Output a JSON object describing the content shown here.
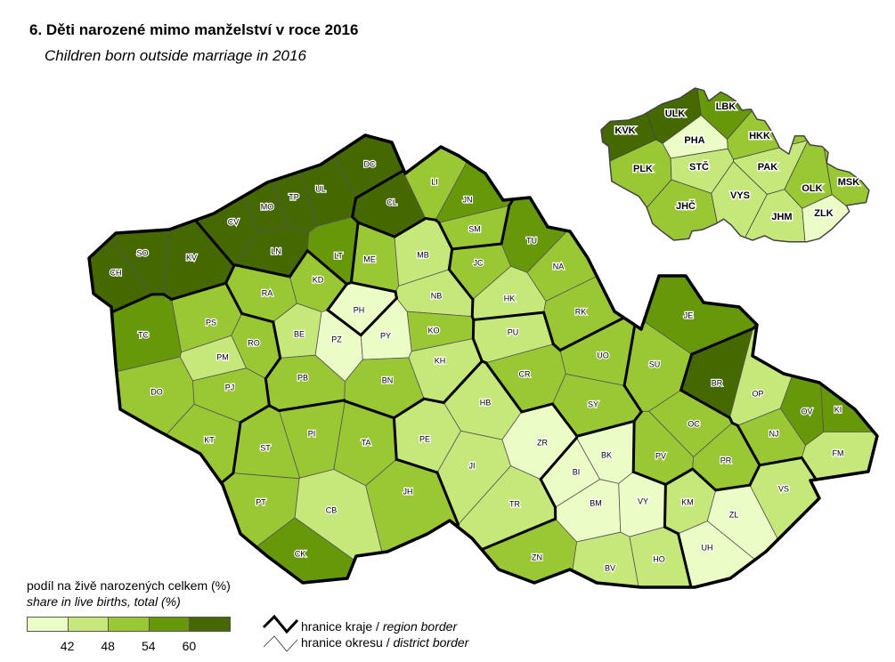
{
  "title": "6. Děti narozené mimo manželství v roce 2016",
  "subtitle": "Children born outside marriage in 2016",
  "legend": {
    "title_cz": "podíl na živě narozených celkem (%)",
    "title_en": "share in live births, total (%)",
    "breaks": [
      "42",
      "48",
      "54",
      "60"
    ],
    "colors": [
      "#ebfcc6",
      "#c6e87a",
      "#9ac834",
      "#66980a",
      "#456800"
    ],
    "region_border": {
      "cz": "hranice kraje / ",
      "en": "region border"
    },
    "district_border": {
      "cz": "hranice okresu / ",
      "en": "district border"
    }
  },
  "map": {
    "districts": [
      {
        "code": "CH",
        "region": "KVK",
        "class": 5
      },
      {
        "code": "SO",
        "region": "KVK",
        "class": 5
      },
      {
        "code": "KV",
        "region": "KVK",
        "class": 5
      },
      {
        "code": "DC",
        "region": "ULK",
        "class": 5
      },
      {
        "code": "UL",
        "region": "ULK",
        "class": 5
      },
      {
        "code": "TP",
        "region": "ULK",
        "class": 5
      },
      {
        "code": "MO",
        "region": "ULK",
        "class": 5
      },
      {
        "code": "CV",
        "region": "ULK",
        "class": 5
      },
      {
        "code": "LN",
        "region": "ULK",
        "class": 5
      },
      {
        "code": "LT",
        "region": "ULK",
        "class": 4
      },
      {
        "code": "CL",
        "region": "LBK",
        "class": 5
      },
      {
        "code": "LI",
        "region": "LBK",
        "class": 3
      },
      {
        "code": "JN",
        "region": "LBK",
        "class": 4
      },
      {
        "code": "SM",
        "region": "LBK",
        "class": 3
      },
      {
        "code": "JC",
        "region": "HKK",
        "class": 3
      },
      {
        "code": "TU",
        "region": "HKK",
        "class": 4
      },
      {
        "code": "NA",
        "region": "HKK",
        "class": 3
      },
      {
        "code": "HK",
        "region": "HKK",
        "class": 2
      },
      {
        "code": "RK",
        "region": "HKK",
        "class": 3
      },
      {
        "code": "PH",
        "region": "PHA",
        "class": 1
      },
      {
        "code": "ME",
        "region": "STC",
        "class": 3
      },
      {
        "code": "MB",
        "region": "STC",
        "class": 2
      },
      {
        "code": "RA",
        "region": "STC",
        "class": 3
      },
      {
        "code": "KD",
        "region": "STC",
        "class": 3
      },
      {
        "code": "BE",
        "region": "STC",
        "class": 2
      },
      {
        "code": "PZ",
        "region": "STC",
        "class": 1
      },
      {
        "code": "PY",
        "region": "STC",
        "class": 1
      },
      {
        "code": "NB",
        "region": "STC",
        "class": 2
      },
      {
        "code": "KO",
        "region": "STC",
        "class": 3
      },
      {
        "code": "KH",
        "region": "STC",
        "class": 2
      },
      {
        "code": "PB",
        "region": "STC",
        "class": 3
      },
      {
        "code": "BN",
        "region": "STC",
        "class": 3
      },
      {
        "code": "TC",
        "region": "PLK",
        "class": 4
      },
      {
        "code": "PS",
        "region": "PLK",
        "class": 3
      },
      {
        "code": "RO",
        "region": "PLK",
        "class": 3
      },
      {
        "code": "PM",
        "region": "PLK",
        "class": 2
      },
      {
        "code": "PJ",
        "region": "PLK",
        "class": 3
      },
      {
        "code": "DO",
        "region": "PLK",
        "class": 3
      },
      {
        "code": "KT",
        "region": "PLK",
        "class": 3
      },
      {
        "code": "ST",
        "region": "JHC",
        "class": 3
      },
      {
        "code": "PI",
        "region": "JHC",
        "class": 3
      },
      {
        "code": "TA",
        "region": "JHC",
        "class": 3
      },
      {
        "code": "PT",
        "region": "JHC",
        "class": 3
      },
      {
        "code": "CB",
        "region": "JHC",
        "class": 2
      },
      {
        "code": "CK",
        "region": "JHC",
        "class": 4
      },
      {
        "code": "JH",
        "region": "JHC",
        "class": 3
      },
      {
        "code": "PU",
        "region": "PAK",
        "class": 2
      },
      {
        "code": "CR",
        "region": "PAK",
        "class": 3
      },
      {
        "code": "UO",
        "region": "PAK",
        "class": 3
      },
      {
        "code": "SY",
        "region": "PAK",
        "class": 3
      },
      {
        "code": "HB",
        "region": "VYS",
        "class": 2
      },
      {
        "code": "PE",
        "region": "VYS",
        "class": 2
      },
      {
        "code": "JI",
        "region": "VYS",
        "class": 2
      },
      {
        "code": "TR",
        "region": "VYS",
        "class": 2
      },
      {
        "code": "ZR",
        "region": "VYS",
        "class": 1
      },
      {
        "code": "BI",
        "region": "JHM",
        "class": 1
      },
      {
        "code": "BK",
        "region": "JHM",
        "class": 1
      },
      {
        "code": "BM",
        "region": "JHM",
        "class": 1
      },
      {
        "code": "VY",
        "region": "JHM",
        "class": 1
      },
      {
        "code": "BV",
        "region": "JHM",
        "class": 2
      },
      {
        "code": "HO",
        "region": "JHM",
        "class": 2
      },
      {
        "code": "ZN",
        "region": "JHM",
        "class": 3
      },
      {
        "code": "SU",
        "region": "OLK",
        "class": 3
      },
      {
        "code": "JE",
        "region": "OLK",
        "class": 4
      },
      {
        "code": "OC",
        "region": "OLK",
        "class": 3
      },
      {
        "code": "PV",
        "region": "OLK",
        "class": 3
      },
      {
        "code": "PR",
        "region": "OLK",
        "class": 3
      },
      {
        "code": "BR",
        "region": "MSK",
        "class": 5
      },
      {
        "code": "OP",
        "region": "MSK",
        "class": 2
      },
      {
        "code": "OV",
        "region": "MSK",
        "class": 4
      },
      {
        "code": "KI",
        "region": "MSK",
        "class": 4
      },
      {
        "code": "NJ",
        "region": "MSK",
        "class": 3
      },
      {
        "code": "FM",
        "region": "MSK",
        "class": 2
      },
      {
        "code": "KM",
        "region": "ZLK",
        "class": 2
      },
      {
        "code": "ZL",
        "region": "ZLK",
        "class": 1
      },
      {
        "code": "UH",
        "region": "ZLK",
        "class": 1
      },
      {
        "code": "VS",
        "region": "ZLK",
        "class": 2
      }
    ],
    "inset_regions": [
      {
        "code": "KVK",
        "class": 5
      },
      {
        "code": "ULK",
        "class": 5
      },
      {
        "code": "LBK",
        "class": 4
      },
      {
        "code": "PHA",
        "class": 1
      },
      {
        "code": "HKK",
        "class": 3
      },
      {
        "code": "PLK",
        "class": 3
      },
      {
        "code": "STČ",
        "class": 2
      },
      {
        "code": "PAK",
        "class": 2
      },
      {
        "code": "OLK",
        "class": 3
      },
      {
        "code": "MSK",
        "class": 3
      },
      {
        "code": "JHČ",
        "class": 3
      },
      {
        "code": "VYS",
        "class": 2
      },
      {
        "code": "JHM",
        "class": 2
      },
      {
        "code": "ZLK",
        "class": 1
      }
    ]
  }
}
